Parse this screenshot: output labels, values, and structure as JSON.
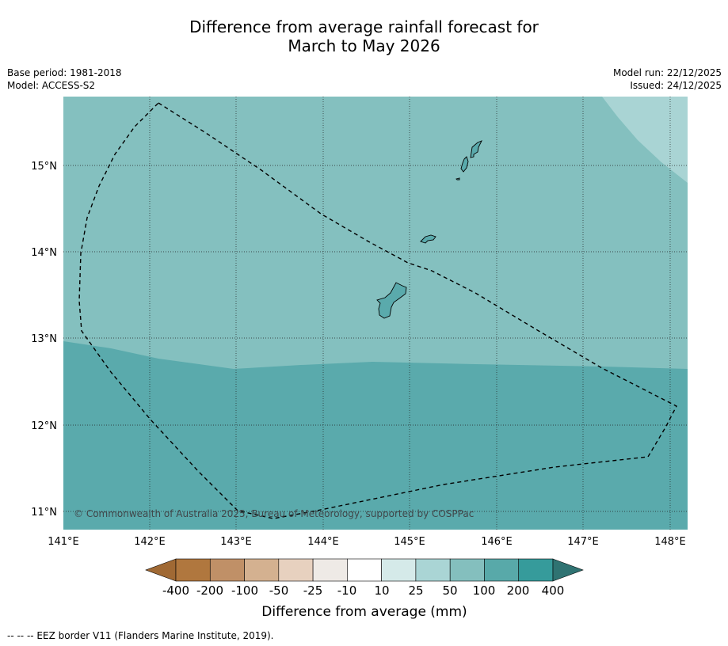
{
  "title": {
    "line1": "Difference from average rainfall forecast for",
    "line2": "March to May 2026"
  },
  "meta": {
    "base_period": "Base period: 1981-2018",
    "model": "Model: ACCESS-S2",
    "model_run": "Model run: 22/12/2025",
    "issued": "Issued: 24/12/2025"
  },
  "map": {
    "lat_labels": [
      "15°N",
      "14°N",
      "13°N",
      "12°N",
      "11°N"
    ],
    "lon_labels": [
      "141°E",
      "142°E",
      "143°E",
      "144°E",
      "145°E",
      "146°E",
      "147°E",
      "148°E"
    ],
    "copyright": "© Commonwealth of Australia 2025, Bureau of Meteorology, supported by COSPPac",
    "zones": {
      "low": {
        "category": "100 to 200 mm",
        "color": "#5aaaac"
      },
      "mid": {
        "category": "50 to 100 mm",
        "color": "#84c0bf"
      },
      "high": {
        "category": "25 to 50 mm",
        "color": "#a9d4d4"
      }
    }
  },
  "colorbar": {
    "labels": [
      "-400",
      "-200",
      "-100",
      "-50",
      "-25",
      "-10",
      "10",
      "25",
      "50",
      "100",
      "200",
      "400"
    ],
    "colors": [
      "#a06934",
      "#b0773e",
      "#c09067",
      "#d4b190",
      "#e7d1bf",
      "#eeeae6",
      "#ffffff",
      "#d5eae9",
      "#aad5d5",
      "#84bfbe",
      "#58a9a9",
      "#369b9b",
      "#2f7372"
    ],
    "title": "Difference from average (mm)"
  },
  "footer": "--  --  -- EEZ border V11 (Flanders Marine Institute, 2019)."
}
